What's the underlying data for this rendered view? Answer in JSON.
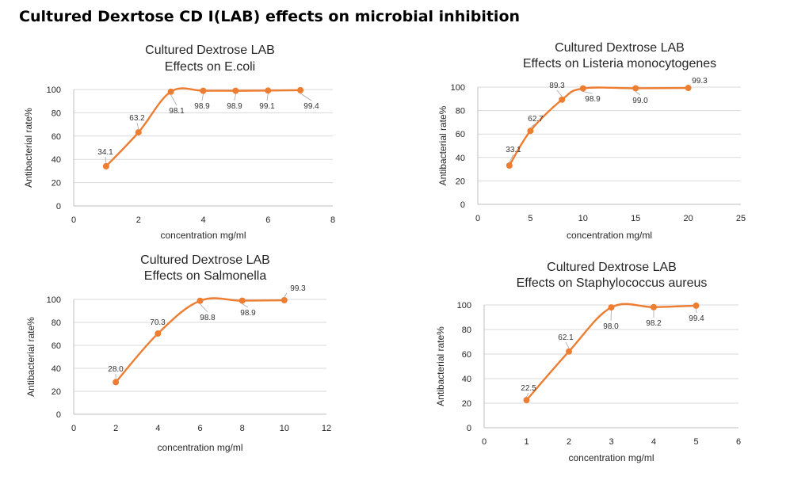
{
  "page_title": "Cultured Dexrtose CD I(LAB) effects on microbial inhibition",
  "chart_data": [
    {
      "type": "line",
      "title": [
        "Cultured Dextrose LAB",
        "Effects on E.coli"
      ],
      "xlabel": "concentration mg/ml",
      "ylabel": "Antibacterial rate%",
      "xlim": [
        0,
        8
      ],
      "xticks": [
        0,
        2,
        4,
        6,
        8
      ],
      "ylim": [
        0,
        100
      ],
      "yticks": [
        0,
        20,
        40,
        60,
        80,
        100
      ],
      "x": [
        1,
        2,
        3,
        4,
        5,
        6,
        7
      ],
      "values": [
        34.1,
        63.2,
        98.1,
        98.9,
        98.9,
        99.1,
        99.4
      ],
      "labels": [
        "34.1",
        "63.2",
        "98.1",
        "98.9",
        "98.9",
        "99.1",
        "99.4"
      ],
      "color": "#ED7D31"
    },
    {
      "type": "line",
      "title": [
        "Cultured Dextrose LAB",
        "Effects on Listeria monocytogenes"
      ],
      "xlabel": "concentration mg/ml",
      "ylabel": "Antibacterial rate%",
      "xlim": [
        0,
        25
      ],
      "xticks": [
        0,
        5,
        10,
        15,
        20,
        25
      ],
      "ylim": [
        0,
        100
      ],
      "yticks": [
        0,
        20,
        40,
        60,
        80,
        100
      ],
      "x": [
        3,
        5,
        8,
        10,
        15,
        20
      ],
      "values": [
        33.1,
        62.7,
        89.3,
        98.9,
        99.0,
        99.3
      ],
      "labels": [
        "33.1",
        "62.7",
        "89.3",
        "98.9",
        "99.0",
        "99.3"
      ],
      "color": "#ED7D31"
    },
    {
      "type": "line",
      "title": [
        "Cultured Dextrose LAB",
        "Effects on Salmonella"
      ],
      "xlabel": "concentration mg/ml",
      "ylabel": "Antibacterial rate%",
      "xlim": [
        0,
        12
      ],
      "xticks": [
        0,
        2,
        4,
        6,
        8,
        10,
        12
      ],
      "ylim": [
        0,
        100
      ],
      "yticks": [
        0,
        20,
        40,
        60,
        80,
        100
      ],
      "x": [
        2,
        4,
        6,
        8,
        10
      ],
      "values": [
        28.0,
        70.3,
        98.8,
        98.9,
        99.3
      ],
      "labels": [
        "28.0",
        "70.3",
        "98.8",
        "98.9",
        "99.3"
      ],
      "color": "#ED7D31"
    },
    {
      "type": "line",
      "title": [
        "Cultured Dextrose LAB",
        "Effects on Staphylococcus aureus"
      ],
      "xlabel": "concentration mg/ml",
      "ylabel": "Antibacterial rate%",
      "xlim": [
        0,
        6
      ],
      "xticks": [
        0,
        1,
        2,
        3,
        4,
        5,
        6
      ],
      "ylim": [
        0,
        100
      ],
      "yticks": [
        0,
        20,
        40,
        60,
        80,
        100
      ],
      "x": [
        1,
        2,
        3,
        4,
        5
      ],
      "values": [
        22.5,
        62.1,
        98.0,
        98.2,
        99.4
      ],
      "labels": [
        "22.5",
        "62.1",
        "98.0",
        "98.2",
        "99.4"
      ],
      "color": "#ED7D31"
    }
  ]
}
